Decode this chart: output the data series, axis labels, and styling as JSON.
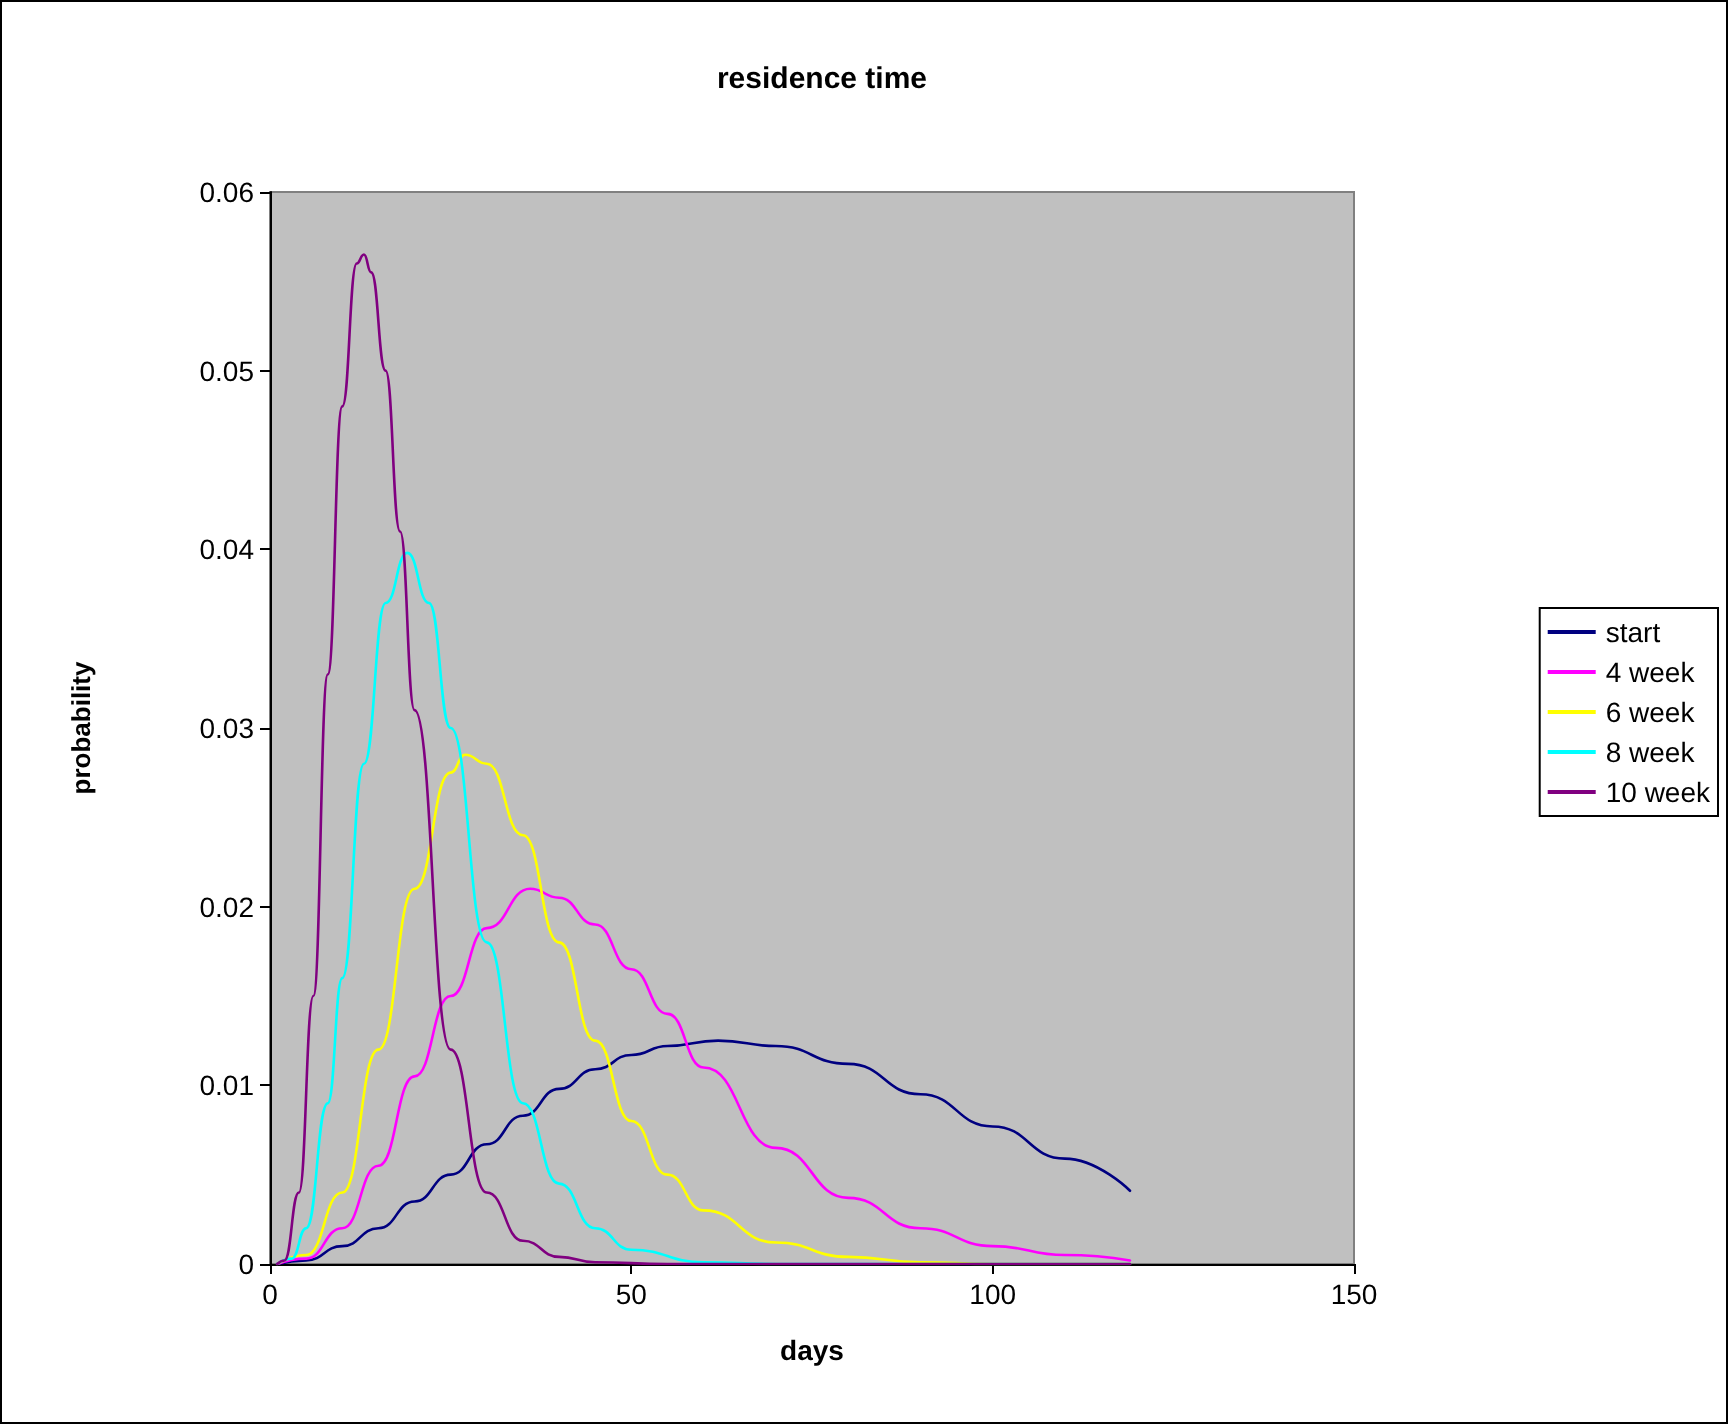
{
  "chart_data": {
    "type": "line",
    "title": "residence time",
    "xlabel": "days",
    "ylabel": "probability",
    "xlim": [
      0,
      150
    ],
    "xticks": [
      0,
      50,
      100,
      150
    ],
    "ylim": [
      0,
      0.06
    ],
    "yticks": [
      0,
      0.01,
      0.02,
      0.03,
      0.04,
      0.05,
      0.06
    ],
    "grid": false,
    "legend": "right",
    "marker": "none",
    "line_style": "solid",
    "series": [
      {
        "name": "start",
        "color": "#000080",
        "x": [
          1,
          5,
          10,
          15,
          20,
          25,
          30,
          35,
          40,
          45,
          50,
          55,
          62,
          70,
          80,
          90,
          100,
          110,
          119
        ],
        "values": [
          0,
          0.0002,
          0.001,
          0.002,
          0.0035,
          0.005,
          0.0067,
          0.0083,
          0.0098,
          0.0109,
          0.0117,
          0.0122,
          0.0125,
          0.0122,
          0.0112,
          0.0095,
          0.0077,
          0.0059,
          0.0041
        ]
      },
      {
        "name": "4 week",
        "color": "#ff00ff",
        "x": [
          1,
          5,
          10,
          15,
          20,
          25,
          30,
          36,
          40,
          45,
          50,
          55,
          60,
          70,
          80,
          90,
          100,
          110,
          119
        ],
        "values": [
          0,
          0.0003,
          0.002,
          0.0055,
          0.0105,
          0.015,
          0.0188,
          0.021,
          0.0205,
          0.019,
          0.0165,
          0.014,
          0.011,
          0.0065,
          0.0037,
          0.002,
          0.001,
          0.0005,
          0.0002
        ]
      },
      {
        "name": "6 week",
        "color": "#ffff00",
        "x": [
          1,
          5,
          10,
          15,
          20,
          25,
          27,
          30,
          35,
          40,
          45,
          50,
          55,
          60,
          70,
          80,
          90,
          100,
          119
        ],
        "values": [
          0,
          0.0005,
          0.004,
          0.012,
          0.021,
          0.0275,
          0.0285,
          0.028,
          0.024,
          0.018,
          0.0125,
          0.008,
          0.005,
          0.003,
          0.0012,
          0.0004,
          0.0001,
          0,
          0
        ]
      },
      {
        "name": "8 week",
        "color": "#00ffff",
        "x": [
          1,
          3,
          5,
          8,
          10,
          13,
          16,
          19,
          22,
          25,
          30,
          35,
          40,
          45,
          50,
          60,
          70,
          119
        ],
        "values": [
          0,
          0.0003,
          0.002,
          0.009,
          0.016,
          0.028,
          0.037,
          0.0398,
          0.037,
          0.03,
          0.018,
          0.009,
          0.0045,
          0.002,
          0.0008,
          0.0001,
          0,
          0
        ]
      },
      {
        "name": "10 week",
        "color": "#800080",
        "x": [
          1,
          2,
          4,
          6,
          8,
          10,
          12,
          13,
          14,
          16,
          18,
          20,
          25,
          30,
          35,
          40,
          45,
          55,
          119
        ],
        "values": [
          0,
          0.0002,
          0.004,
          0.015,
          0.033,
          0.048,
          0.056,
          0.0565,
          0.0555,
          0.05,
          0.041,
          0.031,
          0.012,
          0.004,
          0.0013,
          0.0004,
          0.0001,
          0,
          0
        ]
      }
    ]
  }
}
